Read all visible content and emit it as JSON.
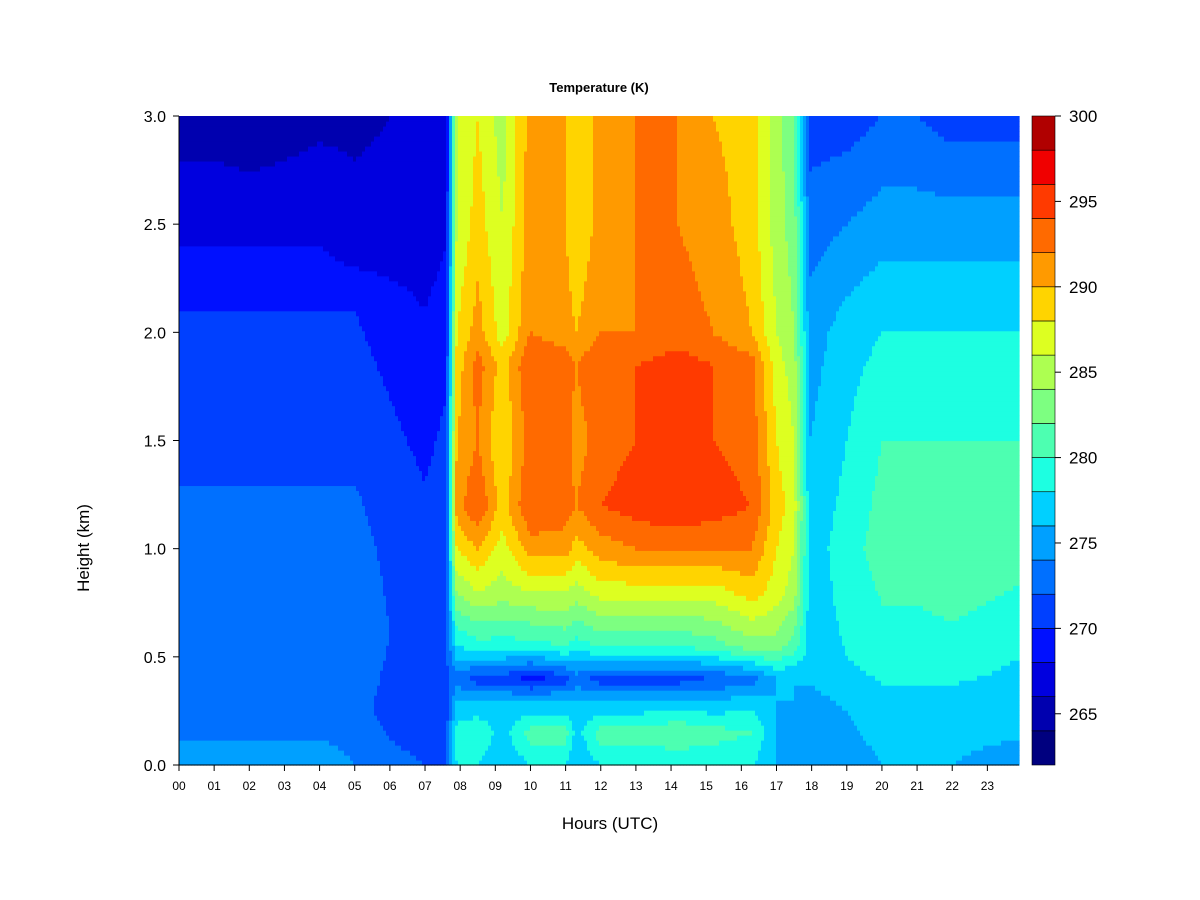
{
  "chart_data": {
    "type": "heatmap",
    "title": "Temperature (K)",
    "xlabel": "Hours (UTC)",
    "ylabel": "Height (km)",
    "x_ticks": [
      "00",
      "01",
      "02",
      "03",
      "04",
      "05",
      "06",
      "07",
      "08",
      "09",
      "10",
      "11",
      "12",
      "13",
      "14",
      "15",
      "16",
      "17",
      "18",
      "19",
      "20",
      "21",
      "22",
      "23"
    ],
    "y_ticks": [
      "0.0",
      "0.5",
      "1.0",
      "1.5",
      "2.0",
      "2.5",
      "3.0"
    ],
    "xlim": [
      0,
      23.9
    ],
    "ylim": [
      0,
      3.0
    ],
    "colorbar": {
      "ticks": [
        "265",
        "270",
        "275",
        "280",
        "285",
        "290",
        "295",
        "300"
      ],
      "range": [
        262,
        300
      ],
      "levels": [
        262,
        264,
        266,
        268,
        270,
        272,
        274,
        276,
        278,
        280,
        282,
        284,
        286,
        288,
        290,
        292,
        294,
        296,
        298,
        300
      ],
      "colors": [
        "#00007f",
        "#0000af",
        "#0000df",
        "#0010ff",
        "#0040ff",
        "#0070ff",
        "#00a0ff",
        "#00d0ff",
        "#1dffe1",
        "#4dffb1",
        "#7dff81",
        "#adff51",
        "#ddff21",
        "#ffd400",
        "#ff9a00",
        "#ff6a00",
        "#ff3a00",
        "#f00000",
        "#b00000",
        "#7f0000"
      ]
    },
    "columns": [
      {
        "hour": 0.0,
        "profile": [
          [
            0.0,
            275
          ],
          [
            0.25,
            273
          ],
          [
            0.6,
            273
          ],
          [
            1.3,
            272
          ],
          [
            2.1,
            270
          ],
          [
            2.4,
            268
          ],
          [
            3.0,
            265
          ]
        ]
      },
      {
        "hour": 1.0,
        "profile": [
          [
            0.0,
            275
          ],
          [
            0.25,
            273
          ],
          [
            0.6,
            274
          ],
          [
            1.3,
            272
          ],
          [
            2.1,
            270
          ],
          [
            2.4,
            268
          ],
          [
            3.0,
            265
          ]
        ]
      },
      {
        "hour": 2.0,
        "profile": [
          [
            0.0,
            275
          ],
          [
            0.25,
            273
          ],
          [
            0.6,
            274
          ],
          [
            1.3,
            272
          ],
          [
            2.1,
            270
          ],
          [
            2.4,
            268
          ],
          [
            3.0,
            264.5
          ]
        ]
      },
      {
        "hour": 3.0,
        "profile": [
          [
            0.0,
            275
          ],
          [
            0.25,
            273
          ],
          [
            0.6,
            274
          ],
          [
            1.3,
            272
          ],
          [
            2.1,
            270
          ],
          [
            2.4,
            268
          ],
          [
            3.0,
            265
          ]
        ]
      },
      {
        "hour": 4.0,
        "profile": [
          [
            0.0,
            275
          ],
          [
            0.25,
            273
          ],
          [
            0.6,
            274
          ],
          [
            1.3,
            272
          ],
          [
            2.1,
            270
          ],
          [
            2.4,
            268
          ],
          [
            3.0,
            265.5
          ]
        ]
      },
      {
        "hour": 5.0,
        "profile": [
          [
            0.0,
            274
          ],
          [
            0.25,
            273
          ],
          [
            0.6,
            274
          ],
          [
            1.3,
            272
          ],
          [
            2.1,
            270
          ],
          [
            2.4,
            267
          ],
          [
            3.0,
            265.5
          ]
        ]
      },
      {
        "hour": 6.0,
        "profile": [
          [
            0.0,
            273
          ],
          [
            0.25,
            271
          ],
          [
            0.6,
            272
          ],
          [
            1.3,
            271
          ],
          [
            2.1,
            269
          ],
          [
            2.4,
            267
          ],
          [
            3.0,
            266
          ]
        ]
      },
      {
        "hour": 7.0,
        "profile": [
          [
            0.0,
            272
          ],
          [
            0.25,
            270
          ],
          [
            0.6,
            271
          ],
          [
            1.3,
            270
          ],
          [
            2.1,
            268
          ],
          [
            2.4,
            267
          ],
          [
            3.0,
            266
          ]
        ]
      },
      {
        "hour": 7.6,
        "profile": [
          [
            0.0,
            272
          ],
          [
            0.25,
            271
          ],
          [
            0.6,
            272
          ],
          [
            1.3,
            271
          ],
          [
            2.1,
            269
          ],
          [
            2.4,
            268
          ],
          [
            3.0,
            267
          ]
        ]
      },
      {
        "hour": 7.9,
        "profile": [
          [
            0.0,
            278
          ],
          [
            0.15,
            279
          ],
          [
            0.3,
            276
          ],
          [
            0.4,
            273
          ],
          [
            0.55,
            278
          ],
          [
            0.8,
            284
          ],
          [
            1.0,
            288
          ],
          [
            1.2,
            291
          ],
          [
            1.5,
            290
          ],
          [
            1.8,
            289
          ],
          [
            2.0,
            288
          ],
          [
            2.5,
            286
          ],
          [
            3.0,
            286
          ]
        ]
      },
      {
        "hour": 8.5,
        "profile": [
          [
            0.0,
            278
          ],
          [
            0.15,
            280
          ],
          [
            0.3,
            276
          ],
          [
            0.4,
            271
          ],
          [
            0.55,
            279
          ],
          [
            0.8,
            286
          ],
          [
            1.0,
            290
          ],
          [
            1.2,
            294
          ],
          [
            1.5,
            292
          ],
          [
            1.85,
            293
          ],
          [
            2.0,
            291
          ],
          [
            2.5,
            289
          ],
          [
            3.0,
            288
          ]
        ]
      },
      {
        "hour": 9.2,
        "profile": [
          [
            0.0,
            276
          ],
          [
            0.15,
            277
          ],
          [
            0.3,
            276
          ],
          [
            0.4,
            271
          ],
          [
            0.55,
            279
          ],
          [
            0.8,
            285
          ],
          [
            1.0,
            287
          ],
          [
            1.2,
            289
          ],
          [
            1.5,
            288
          ],
          [
            1.85,
            289
          ],
          [
            2.0,
            287
          ],
          [
            2.5,
            286
          ],
          [
            3.0,
            285
          ]
        ]
      },
      {
        "hour": 10.0,
        "profile": [
          [
            0.0,
            278
          ],
          [
            0.15,
            281
          ],
          [
            0.3,
            276
          ],
          [
            0.4,
            269
          ],
          [
            0.55,
            279
          ],
          [
            0.8,
            286
          ],
          [
            1.0,
            291
          ],
          [
            1.2,
            294
          ],
          [
            1.5,
            293
          ],
          [
            1.85,
            294
          ],
          [
            2.0,
            292
          ],
          [
            2.5,
            291
          ],
          [
            3.0,
            291
          ]
        ]
      },
      {
        "hour": 11.0,
        "profile": [
          [
            0.0,
            278
          ],
          [
            0.15,
            281
          ],
          [
            0.3,
            276
          ],
          [
            0.4,
            271
          ],
          [
            0.55,
            280
          ],
          [
            0.8,
            286
          ],
          [
            1.0,
            291
          ],
          [
            1.2,
            293
          ],
          [
            1.5,
            293
          ],
          [
            1.85,
            293
          ],
          [
            2.0,
            291
          ],
          [
            2.5,
            290
          ],
          [
            3.0,
            290
          ]
        ]
      },
      {
        "hour": 11.3,
        "profile": [
          [
            0.0,
            276
          ],
          [
            0.15,
            277
          ],
          [
            0.3,
            276
          ],
          [
            0.4,
            273
          ],
          [
            0.55,
            279
          ],
          [
            0.8,
            285
          ],
          [
            1.0,
            289
          ],
          [
            1.2,
            292
          ],
          [
            1.5,
            291
          ],
          [
            1.85,
            292
          ],
          [
            2.0,
            290
          ],
          [
            2.5,
            288
          ],
          [
            3.0,
            288
          ]
        ]
      },
      {
        "hour": 12.0,
        "profile": [
          [
            0.0,
            278
          ],
          [
            0.15,
            281
          ],
          [
            0.3,
            276
          ],
          [
            0.4,
            271
          ],
          [
            0.55,
            280
          ],
          [
            0.8,
            287
          ],
          [
            1.0,
            291
          ],
          [
            1.2,
            294
          ],
          [
            1.5,
            293
          ],
          [
            1.85,
            294
          ],
          [
            2.0,
            292
          ],
          [
            2.5,
            291
          ],
          [
            3.0,
            291
          ]
        ]
      },
      {
        "hour": 13.0,
        "profile": [
          [
            0.0,
            278
          ],
          [
            0.15,
            281
          ],
          [
            0.3,
            276
          ],
          [
            0.4,
            271
          ],
          [
            0.55,
            280
          ],
          [
            0.8,
            287
          ],
          [
            1.0,
            292
          ],
          [
            1.2,
            295
          ],
          [
            1.5,
            294
          ],
          [
            1.85,
            294
          ],
          [
            2.0,
            292
          ],
          [
            2.5,
            292
          ],
          [
            3.0,
            292
          ]
        ]
      },
      {
        "hour": 14.2,
        "profile": [
          [
            0.0,
            278
          ],
          [
            0.15,
            282
          ],
          [
            0.3,
            276
          ],
          [
            0.4,
            271
          ],
          [
            0.55,
            280
          ],
          [
            0.8,
            287
          ],
          [
            1.0,
            292
          ],
          [
            1.2,
            296
          ],
          [
            1.5,
            294
          ],
          [
            1.85,
            295
          ],
          [
            2.0,
            293
          ],
          [
            2.5,
            292
          ],
          [
            3.0,
            292
          ]
        ]
      },
      {
        "hour": 15.2,
        "profile": [
          [
            0.0,
            278
          ],
          [
            0.15,
            281
          ],
          [
            0.3,
            276
          ],
          [
            0.4,
            272
          ],
          [
            0.55,
            281
          ],
          [
            0.8,
            287
          ],
          [
            1.0,
            292
          ],
          [
            1.2,
            295
          ],
          [
            1.5,
            294
          ],
          [
            1.85,
            294
          ],
          [
            2.0,
            292
          ],
          [
            2.5,
            291
          ],
          [
            3.0,
            290
          ]
        ]
      },
      {
        "hour": 16.3,
        "profile": [
          [
            0.0,
            278
          ],
          [
            0.15,
            280
          ],
          [
            0.3,
            277
          ],
          [
            0.4,
            273
          ],
          [
            0.55,
            283
          ],
          [
            0.8,
            289
          ],
          [
            1.0,
            292
          ],
          [
            1.2,
            294
          ],
          [
            1.5,
            293
          ],
          [
            1.85,
            293
          ],
          [
            2.0,
            290
          ],
          [
            2.5,
            289
          ],
          [
            3.0,
            289
          ]
        ]
      },
      {
        "hour": 17.0,
        "profile": [
          [
            0.0,
            276
          ],
          [
            0.15,
            276
          ],
          [
            0.3,
            276
          ],
          [
            0.4,
            276
          ],
          [
            0.55,
            283
          ],
          [
            0.8,
            287
          ],
          [
            1.0,
            288
          ],
          [
            1.2,
            289
          ],
          [
            1.5,
            288
          ],
          [
            1.85,
            287
          ],
          [
            2.0,
            286
          ],
          [
            2.5,
            285
          ],
          [
            3.0,
            285
          ]
        ]
      },
      {
        "hour": 17.5,
        "profile": [
          [
            0.0,
            275
          ],
          [
            0.15,
            275
          ],
          [
            0.3,
            276
          ],
          [
            0.4,
            276
          ],
          [
            0.55,
            281
          ],
          [
            0.8,
            285
          ],
          [
            1.0,
            286
          ],
          [
            1.2,
            287
          ],
          [
            1.5,
            286
          ],
          [
            1.85,
            285
          ],
          [
            2.0,
            284
          ],
          [
            2.5,
            283
          ],
          [
            3.0,
            282
          ]
        ]
      },
      {
        "hour": 17.95,
        "profile": [
          [
            0.0,
            274
          ],
          [
            0.25,
            275
          ],
          [
            0.5,
            277
          ],
          [
            1.0,
            277
          ],
          [
            1.5,
            276
          ],
          [
            2.0,
            275
          ],
          [
            2.5,
            273
          ],
          [
            3.0,
            271
          ]
        ]
      },
      {
        "hour": 19.0,
        "profile": [
          [
            0.0,
            275
          ],
          [
            0.25,
            276
          ],
          [
            0.5,
            278
          ],
          [
            1.0,
            279
          ],
          [
            1.5,
            278
          ],
          [
            2.0,
            277
          ],
          [
            2.5,
            274
          ],
          [
            3.0,
            271
          ]
        ]
      },
      {
        "hour": 20.0,
        "profile": [
          [
            0.0,
            276
          ],
          [
            0.25,
            277
          ],
          [
            0.5,
            279
          ],
          [
            1.0,
            281
          ],
          [
            1.5,
            280
          ],
          [
            2.0,
            278
          ],
          [
            2.5,
            275
          ],
          [
            3.0,
            272
          ]
        ]
      },
      {
        "hour": 21.0,
        "profile": [
          [
            0.0,
            276
          ],
          [
            0.25,
            277
          ],
          [
            0.5,
            279
          ],
          [
            1.0,
            281
          ],
          [
            1.5,
            280
          ],
          [
            2.0,
            278
          ],
          [
            2.5,
            275
          ],
          [
            3.0,
            272
          ]
        ]
      },
      {
        "hour": 22.0,
        "profile": [
          [
            0.0,
            276
          ],
          [
            0.25,
            277
          ],
          [
            0.5,
            279
          ],
          [
            1.0,
            282
          ],
          [
            1.5,
            280
          ],
          [
            2.0,
            278
          ],
          [
            2.5,
            275
          ],
          [
            3.0,
            271
          ]
        ]
      },
      {
        "hour": 23.9,
        "profile": [
          [
            0.0,
            275
          ],
          [
            0.25,
            277
          ],
          [
            0.5,
            278
          ],
          [
            1.0,
            281
          ],
          [
            1.5,
            280
          ],
          [
            2.0,
            278
          ],
          [
            2.5,
            275
          ],
          [
            3.0,
            271
          ]
        ]
      }
    ]
  }
}
